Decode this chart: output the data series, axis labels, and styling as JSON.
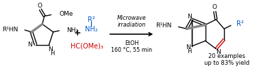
{
  "bg_color": "#ffffff",
  "black": "#000000",
  "blue": "#0055cc",
  "red": "#cc0000",
  "bold_bond": "#888888",
  "figsize": [
    3.78,
    1.1
  ],
  "dpi": 100,
  "microwave_text": "Microwave\nirradiation",
  "conditions_text": "EtOH\n160 °C, 55 min",
  "examples_text": "20 examples\nup to 83% yield"
}
